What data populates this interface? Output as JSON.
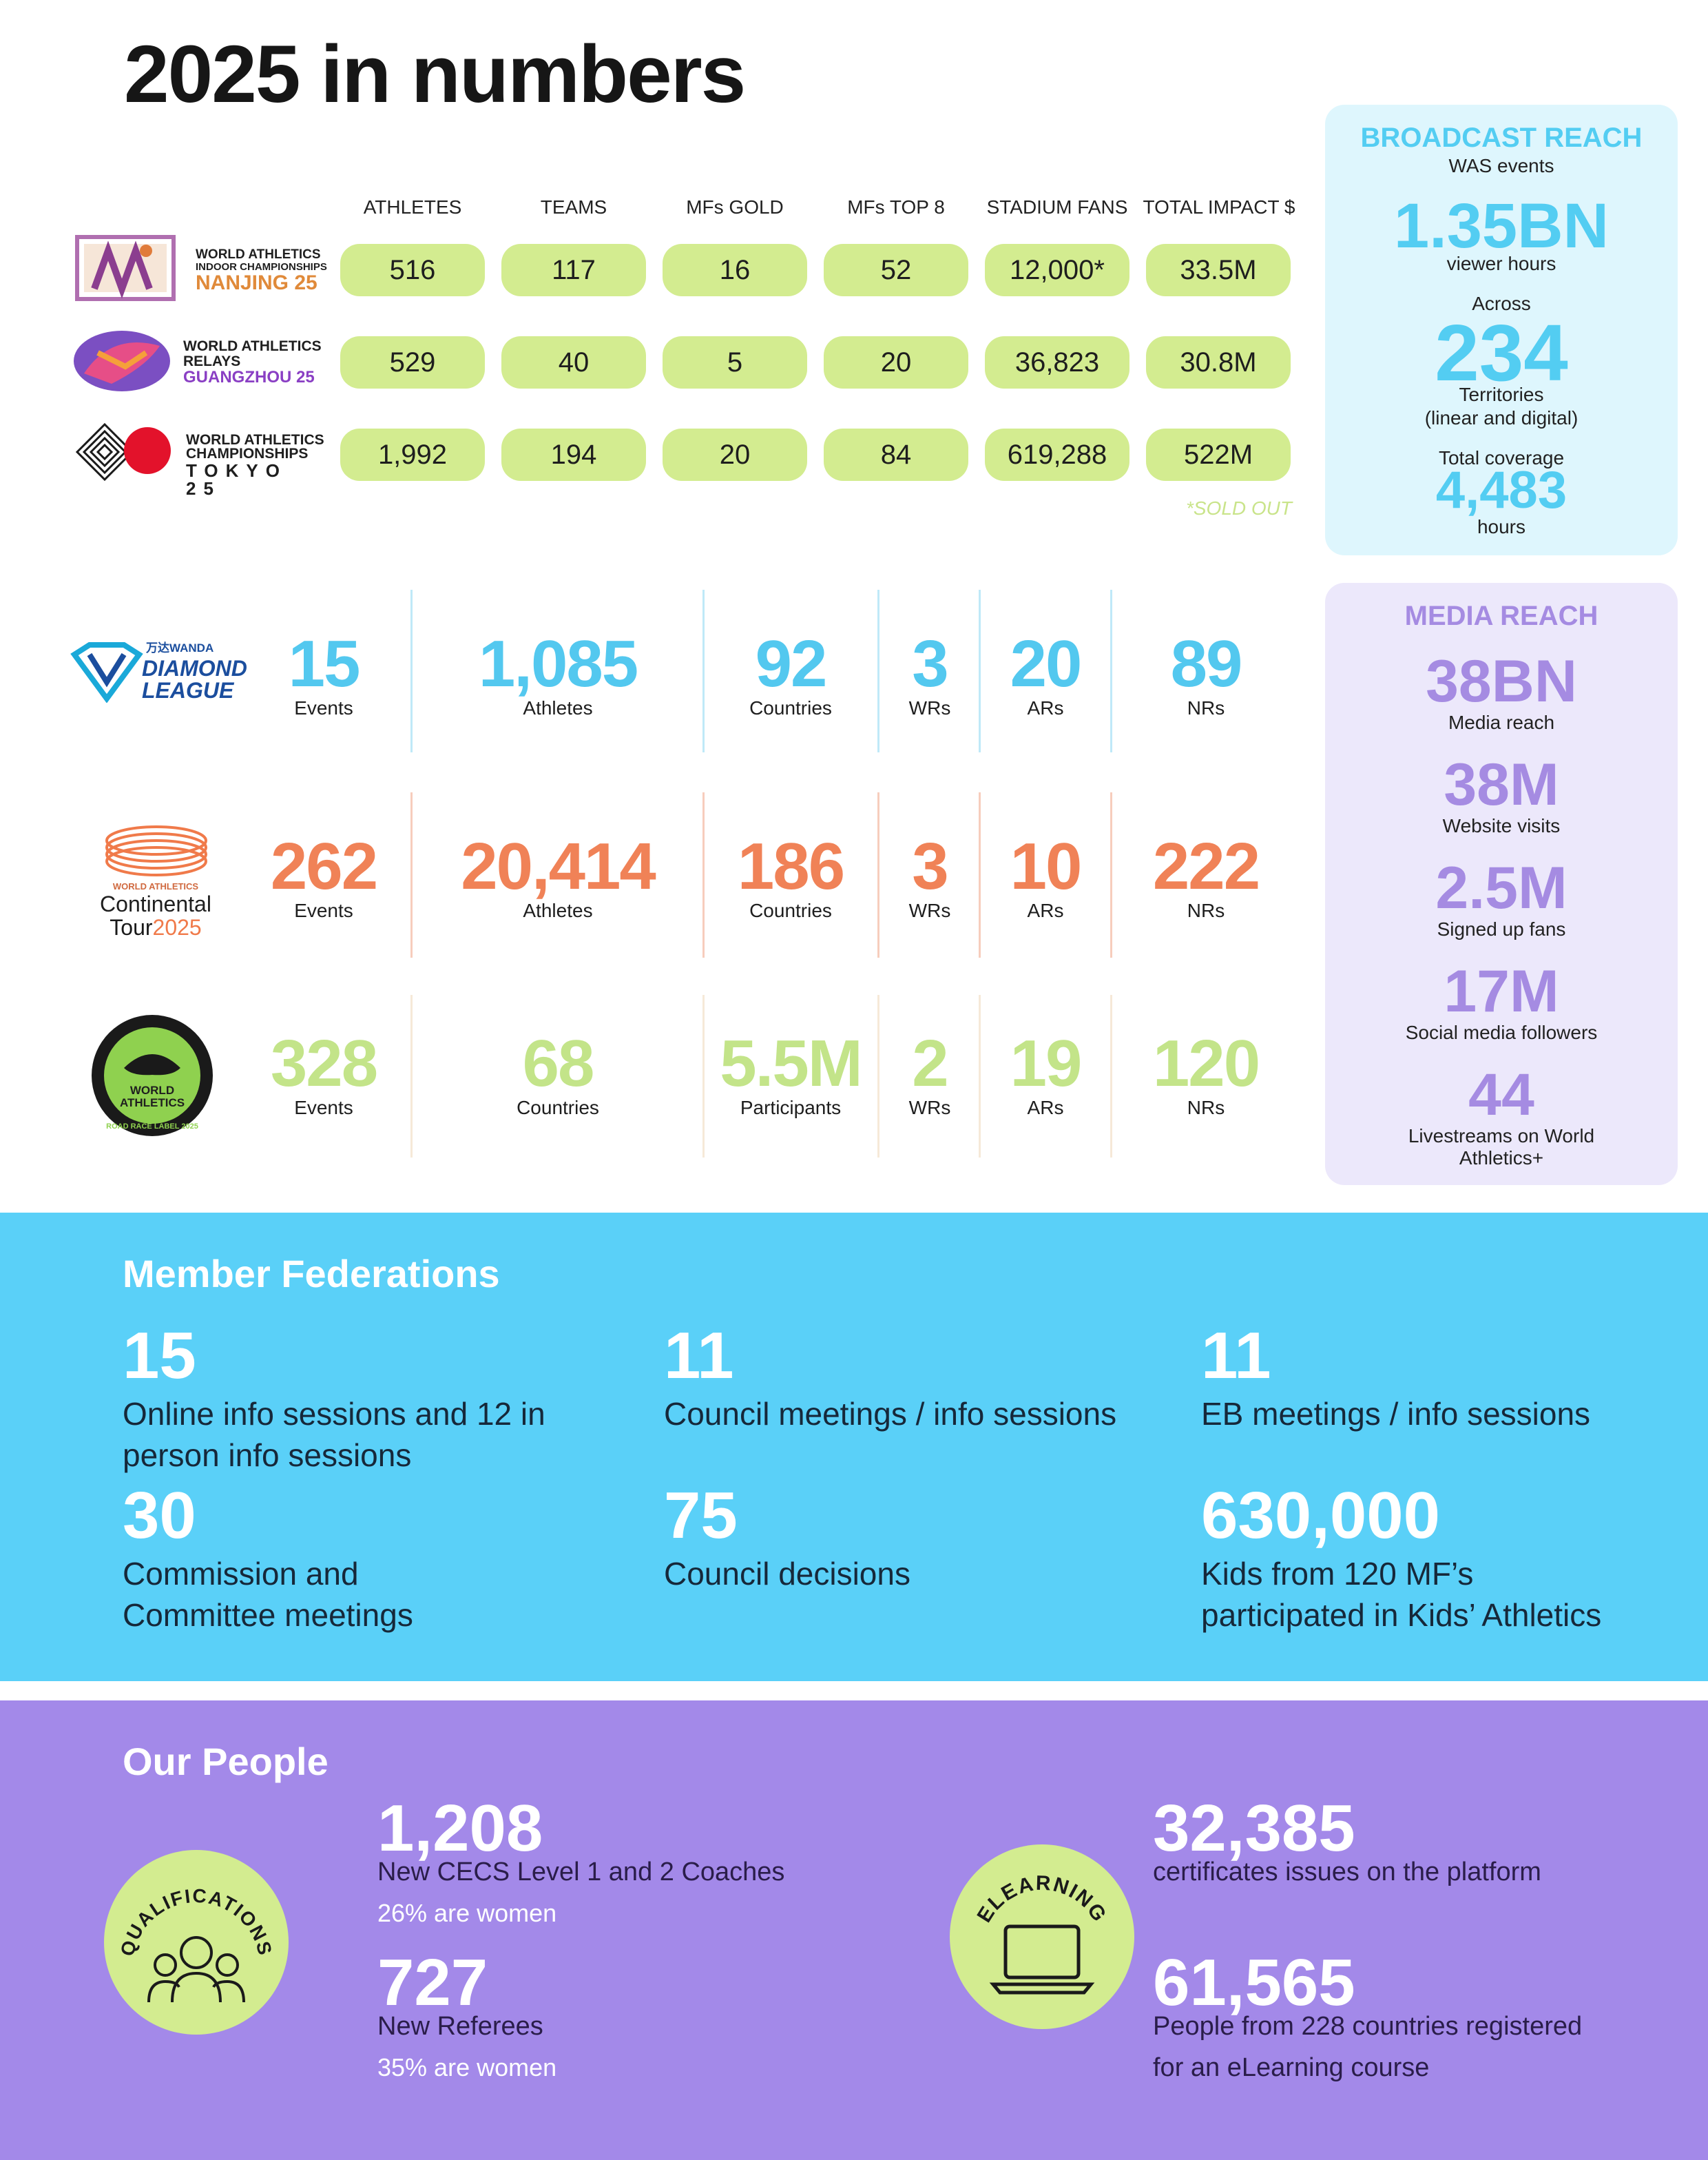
{
  "page_title": "2025 in numbers",
  "championships": {
    "columns": [
      "ATHLETES",
      "TEAMS",
      "MFs GOLD",
      "MFs TOP 8",
      "STADIUM FANS",
      "TOTAL IMPACT $"
    ],
    "rows": [
      {
        "logo_lines": [
          "WORLD ATHLETICS",
          "INDOOR CHAMPIONSHIPS",
          "NANJING 25"
        ],
        "values": [
          "516",
          "117",
          "16",
          "52",
          "12,000*",
          "33.5M"
        ]
      },
      {
        "logo_lines": [
          "WORLD ATHLETICS",
          "RELAYS",
          "GUANGZHOU 25"
        ],
        "values": [
          "529",
          "40",
          "5",
          "20",
          "36,823",
          "30.8M"
        ]
      },
      {
        "logo_lines": [
          "WORLD ATHLETICS",
          "CHAMPIONSHIPS",
          "TOKYO 25"
        ],
        "values": [
          "1,992",
          "194",
          "20",
          "84",
          "619,288",
          "522M"
        ]
      }
    ],
    "footnote": "*SOLD OUT"
  },
  "broadcast": {
    "title": "BROADCAST REACH",
    "subtitle": "WAS events",
    "viewer_hours_value": "1.35BN",
    "viewer_hours_label": "viewer hours",
    "across_label": "Across",
    "territories_value": "234",
    "territories_label": "Territories",
    "territories_note": "(linear and digital)",
    "coverage_label": "Total coverage",
    "coverage_value": "4,483",
    "coverage_unit": "hours"
  },
  "media": {
    "title": "MEDIA REACH",
    "items": [
      {
        "value": "38BN",
        "label": "Media reach"
      },
      {
        "value": "38M",
        "label": "Website visits"
      },
      {
        "value": "2.5M",
        "label": "Signed up fans"
      },
      {
        "value": "17M",
        "label": "Social media followers"
      },
      {
        "value": "44",
        "label_line1": "Livestreams on World",
        "label_line2": "Athletics+"
      }
    ]
  },
  "series": {
    "diamond_league": {
      "logo_lines": [
        "万达WANDA",
        "DIAMOND",
        "LEAGUE"
      ],
      "stats": [
        {
          "value": "15",
          "label": "Events"
        },
        {
          "value": "1,085",
          "label": "Athletes"
        },
        {
          "value": "92",
          "label": "Countries"
        },
        {
          "value": "3",
          "label": "WRs"
        },
        {
          "value": "20",
          "label": "ARs"
        },
        {
          "value": "89",
          "label": "NRs"
        }
      ],
      "color": "#53c8ef"
    },
    "continental_tour": {
      "logo_lines": [
        "WORLD ATHLETICS",
        "Continental",
        "Tour",
        "2025"
      ],
      "stats": [
        {
          "value": "262",
          "label": "Events"
        },
        {
          "value": "20,414",
          "label": "Athletes"
        },
        {
          "value": "186",
          "label": "Countries"
        },
        {
          "value": "3",
          "label": "WRs"
        },
        {
          "value": "10",
          "label": "ARs"
        },
        {
          "value": "222",
          "label": "NRs"
        }
      ],
      "color": "#f08257"
    },
    "road_race": {
      "logo_lines": [
        "WORLD",
        "ATHLETICS",
        "ROAD RACE LABEL 2025"
      ],
      "stats": [
        {
          "value": "328",
          "label": "Events"
        },
        {
          "value": "68",
          "label": "Countries"
        },
        {
          "value": "5.5M",
          "label": "Participants"
        },
        {
          "value": "2",
          "label": "WRs"
        },
        {
          "value": "19",
          "label": "ARs"
        },
        {
          "value": "120",
          "label": "NRs"
        }
      ],
      "color": "#c3e489"
    }
  },
  "member_federations": {
    "title": "Member Federations",
    "items": [
      {
        "value": "15",
        "line1": "Online info sessions and 12 in",
        "line2": "person info sessions"
      },
      {
        "value": "11",
        "line1": "Council meetings / info sessions",
        "line2": ""
      },
      {
        "value": "11",
        "line1": "EB meetings / info sessions",
        "line2": ""
      },
      {
        "value": "30",
        "line1": "Commission and",
        "line2": "Committee meetings"
      },
      {
        "value": "75",
        "line1": "Council decisions",
        "line2": ""
      },
      {
        "value": "630,000",
        "line1": "Kids from 120 MF’s",
        "line2": "participated in Kids’ Athletics"
      }
    ],
    "color": "#5ad0f8"
  },
  "our_people": {
    "title": "Our People",
    "qualifications": {
      "badge_label": "QUALIFICATIONS",
      "coaches_value": "1,208",
      "coaches_label": "New CECS Level 1 and 2 Coaches",
      "coaches_note": "26% are women",
      "referees_value": "727",
      "referees_label": "New Referees",
      "referees_note": "35% are women"
    },
    "elearning": {
      "badge_label": "ELEARNING",
      "certificates_value": "32,385",
      "certificates_label": "certificates issues on the platform",
      "people_value": "61,565",
      "people_line1": "People from 228 countries registered",
      "people_line2": "for an eLearning course"
    },
    "color": "#a389e9",
    "badge_color": "#d3ec90"
  }
}
